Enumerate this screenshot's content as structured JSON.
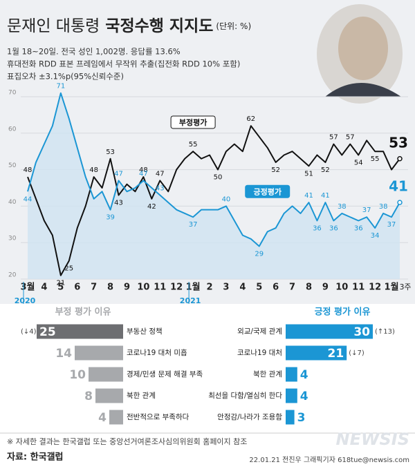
{
  "header": {
    "title_plain": "문재인 대통령",
    "title_bold": "국정수행 지지도",
    "unit": "(단위: %)",
    "notes": [
      "1월 18~20일. 전국 성인 1,002명. 응답률 13.6%",
      "휴대전화 RDD 표본 프레임에서 무작위 추출(집전화 RDD 10% 포함)",
      "표집오차 ±3.1%p(95%신뢰수준)"
    ]
  },
  "chart_data": [
    {
      "type": "line",
      "categories": [
        "3월",
        null,
        "4",
        null,
        "5",
        null,
        "6",
        null,
        "7",
        null,
        "8",
        null,
        "9",
        null,
        "10",
        null,
        "11",
        null,
        "12",
        null,
        "1월",
        null,
        "2",
        null,
        "3",
        null,
        "4",
        null,
        "5",
        null,
        "6",
        null,
        "7",
        null,
        "8",
        null,
        "9",
        null,
        "10",
        null,
        "11",
        null,
        "12",
        null,
        "1월",
        "3주"
      ],
      "year_labels": [
        "2020",
        null,
        null,
        null,
        null,
        null,
        null,
        null,
        null,
        null,
        null,
        null,
        null,
        null,
        null,
        null,
        null,
        null,
        null,
        null,
        "2021",
        null,
        null,
        null,
        null,
        null,
        null,
        null,
        null,
        null,
        null,
        null,
        null,
        null,
        null,
        null,
        null,
        null,
        null,
        null,
        null,
        null,
        null,
        null,
        null,
        null
      ],
      "ylim": [
        20,
        70
      ],
      "yticks": [
        20,
        30,
        40,
        50,
        60,
        70
      ],
      "grid": true,
      "series": [
        {
          "name": "부정평가",
          "color": "#111111",
          "values": [
            48,
            42,
            36,
            32,
            21,
            25,
            34,
            40,
            48,
            45,
            53,
            43,
            46,
            44,
            48,
            42,
            47,
            44,
            50,
            53,
            55,
            53,
            54,
            50,
            55,
            57,
            55,
            62,
            59,
            56,
            52,
            54,
            55,
            53,
            51,
            54,
            52,
            57,
            54,
            57,
            54,
            58,
            55,
            55,
            50,
            53
          ],
          "value_labels": [
            "48",
            null,
            null,
            null,
            "21",
            "25",
            null,
            null,
            "48",
            null,
            "53",
            "43",
            null,
            null,
            "48",
            "42",
            "47",
            null,
            null,
            null,
            "55",
            null,
            null,
            "50",
            null,
            null,
            null,
            "62",
            null,
            null,
            "52",
            null,
            null,
            null,
            "51",
            null,
            "52",
            "57",
            null,
            "57",
            "54",
            null,
            "55",
            null,
            null,
            "53"
          ]
        },
        {
          "name": "긍정평가",
          "color": "#1b96d4",
          "values": [
            44,
            52,
            57,
            62,
            71,
            64,
            56,
            48,
            42,
            44,
            39,
            47,
            44,
            45,
            47,
            45,
            43,
            41,
            39,
            38,
            37,
            39,
            39,
            39,
            40,
            36,
            32,
            31,
            29,
            33,
            34,
            38,
            40,
            38,
            41,
            36,
            41,
            36,
            38,
            37,
            36,
            37,
            34,
            38,
            37,
            41
          ],
          "value_labels": [
            "44",
            null,
            null,
            null,
            "71",
            null,
            null,
            null,
            null,
            null,
            "39",
            "47",
            null,
            null,
            "47",
            null,
            "43",
            null,
            null,
            null,
            "37",
            null,
            null,
            null,
            "40",
            null,
            null,
            null,
            "29",
            null,
            null,
            null,
            null,
            null,
            "41",
            "36",
            "41",
            "36",
            "38",
            null,
            "36",
            "37",
            "34",
            "38",
            "37",
            "41"
          ]
        }
      ]
    },
    {
      "type": "bar",
      "orientation": "horizontal",
      "title": "부정 평가 이유",
      "categories": [
        "부동산 정책",
        "코로나19 대처 미흡",
        "경제/민생 문제 해결 부족",
        "북한 관계",
        "전반적으로 부족하다"
      ],
      "values": [
        25,
        14,
        10,
        8,
        4
      ],
      "changes": [
        "(↓4)",
        null,
        null,
        null,
        null
      ],
      "colors": [
        "#6d6e71",
        "#a7a9ac",
        "#a7a9ac",
        "#a7a9ac",
        "#a7a9ac"
      ]
    },
    {
      "type": "bar",
      "orientation": "horizontal",
      "title": "긍정 평가 이유",
      "categories": [
        "외교/국제 관계",
        "코로나19 대처",
        "북한 관계",
        "최선을 다함/열심히 한다",
        "안정감/나라가 조용함"
      ],
      "values": [
        30,
        21,
        4,
        4,
        3
      ],
      "changes": [
        "(↑13)",
        "(↓7)",
        null,
        null,
        null
      ],
      "colors": [
        "#1b96d4",
        "#1b96d4",
        "#1b96d4",
        "#1b96d4",
        "#1b96d4"
      ]
    }
  ],
  "footer": {
    "note": "※ 자세한 결과는 한국갤럽 또는 중앙선거여론조사심의위원회 홈페이지 참조",
    "source": "자료: 한국갤럽",
    "credit": "22.01.21 전진우 그래픽기자 618tue@newsis.com",
    "watermark": "NEWSIS"
  }
}
